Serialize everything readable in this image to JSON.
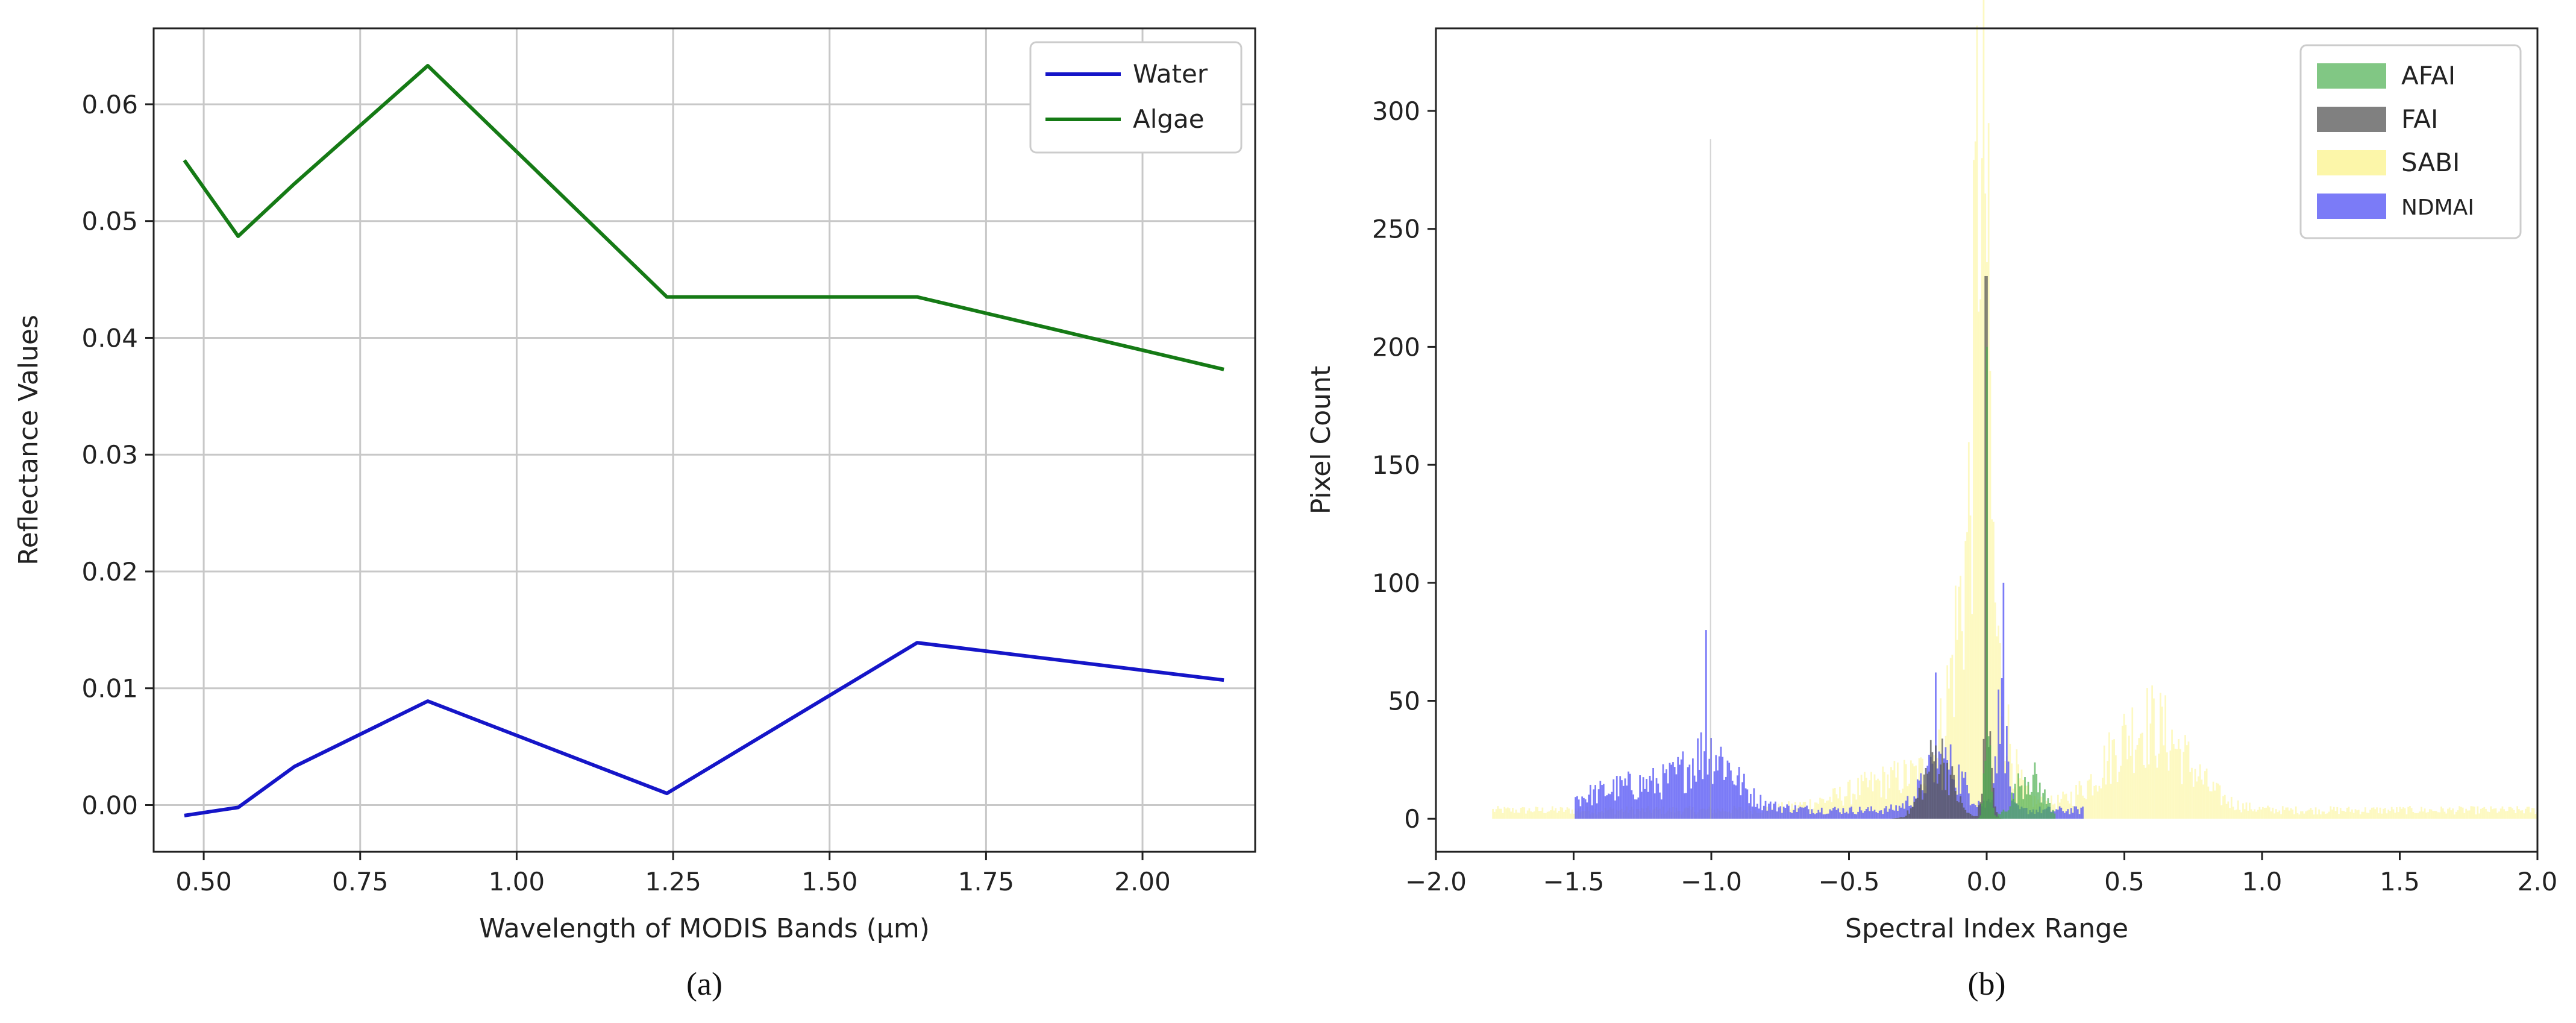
{
  "chart_data": [
    {
      "type": "line",
      "caption": "(a)",
      "xlabel": "Wavelength of MODIS Bands (μm)",
      "ylabel": "Reflectance Values",
      "xlim": [
        0.42,
        2.18
      ],
      "ylim": [
        -0.004,
        0.0665
      ],
      "xticks": [
        "0.50",
        "0.75",
        "1.00",
        "1.25",
        "1.50",
        "1.75",
        "2.00"
      ],
      "xtick_values": [
        0.5,
        0.75,
        1.0,
        1.25,
        1.5,
        1.75,
        2.0
      ],
      "yticks": [
        "0.00",
        "0.01",
        "0.02",
        "0.03",
        "0.04",
        "0.05",
        "0.06"
      ],
      "ytick_values": [
        0.0,
        0.01,
        0.02,
        0.03,
        0.04,
        0.05,
        0.06
      ],
      "grid": true,
      "legend_position": "top-right",
      "x": [
        0.469,
        0.555,
        0.645,
        0.858,
        1.24,
        1.64,
        2.13
      ],
      "series": [
        {
          "name": "Water",
          "color": "#1515c8",
          "values": [
            -0.0009,
            -0.0002,
            0.0033,
            0.0089,
            0.001,
            0.0139,
            0.0107
          ]
        },
        {
          "name": "Algae",
          "color": "#157a15",
          "values": [
            0.0552,
            0.0487,
            0.0532,
            0.0633,
            0.0435,
            0.0435,
            0.0373
          ]
        }
      ]
    },
    {
      "type": "histogram",
      "caption": "(b)",
      "xlabel": "Spectral Index Range",
      "ylabel": "Pixel Count",
      "xlim": [
        -2.0,
        2.0
      ],
      "ylim": [
        -14,
        335
      ],
      "xticks": [
        "−2.0",
        "−1.5",
        "−1.0",
        "−0.5",
        "0.0",
        "0.5",
        "1.0",
        "1.5",
        "2.0"
      ],
      "xtick_values": [
        -2.0,
        -1.5,
        -1.0,
        -0.5,
        0.0,
        0.5,
        1.0,
        1.5,
        2.0
      ],
      "yticks": [
        "0",
        "50",
        "100",
        "150",
        "200",
        "250",
        "300"
      ],
      "ytick_values": [
        0,
        50,
        100,
        150,
        200,
        250,
        300
      ],
      "grid": false,
      "legend_position": "top-right",
      "series": [
        {
          "name": "AFAI",
          "color": "#4caf50",
          "opacity": 0.7
        },
        {
          "name": "FAI",
          "color": "#555555",
          "opacity": 0.75
        },
        {
          "name": "SABI",
          "color": "#fbf59a",
          "opacity": 0.6
        },
        {
          "name": "NDMAI",
          "color": "#5a5af5",
          "opacity": 0.8
        }
      ]
    }
  ]
}
